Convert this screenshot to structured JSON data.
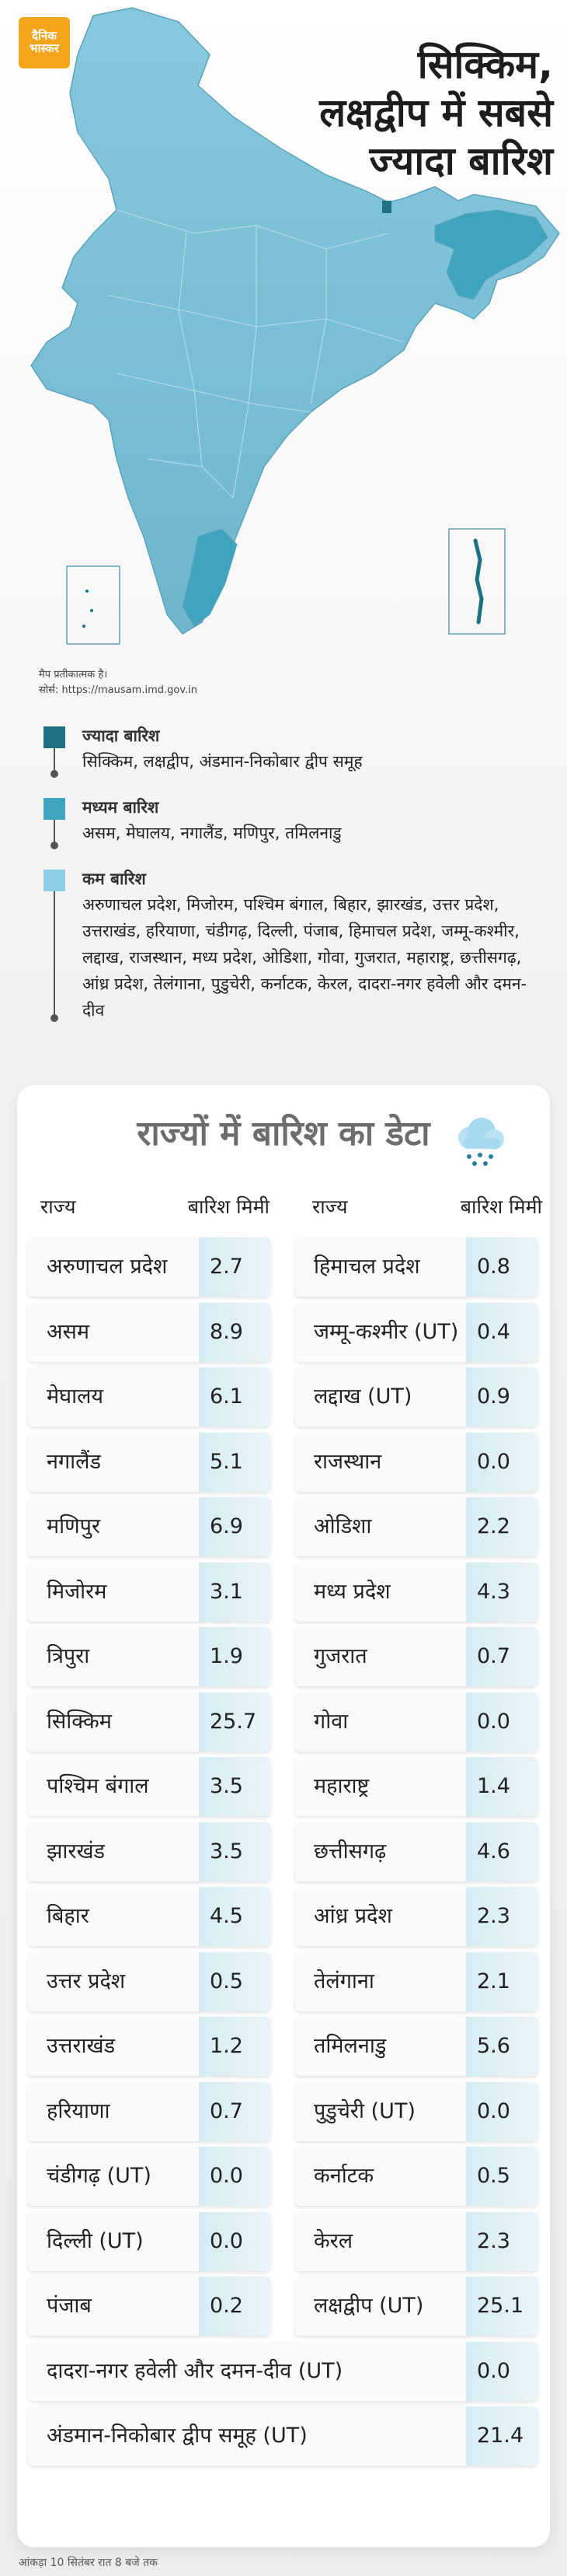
{
  "brand": {
    "line1": "दैनिक",
    "line2": "भास्कर"
  },
  "headline": {
    "line1": "सिक्किम,",
    "line2": "लक्षद्वीप में सबसे",
    "line3": "ज्यादा बारिश"
  },
  "map_note": {
    "line1": "मैप प्रतीकात्मक है।",
    "line2": "सोर्स: https://mausam.imd.gov.in"
  },
  "colors": {
    "high": "#1e7183",
    "medium": "#3fa4bf",
    "low": "#8dd0e6",
    "map_base": "#7cc0d6"
  },
  "legend": [
    {
      "title": "ज्यादा बारिश",
      "states": "सिक्किम, लक्षद्वीप, अंडमान-निकोबार द्वीप समूह"
    },
    {
      "title": "मध्यम बारिश",
      "states": "असम, मेघालय, नगालैंड, मणिपुर, तमिलनाडु"
    },
    {
      "title": "कम बारिश",
      "states": "अरुणाचल प्रदेश, मिजोरम, पश्चिम बंगाल, बिहार, झारखंड, उत्तर प्रदेश, उत्तराखंड, हरियाणा, चंडीगढ़, दिल्ली, पंजाब, हिमाचल प्रदेश, जम्मू-कश्मीर, लद्दाख, राजस्थान, मध्य प्रदेश, ओडिशा, गोवा, गुजरात, महाराष्ट्र, छत्तीसगढ़, आंध्र प्रदेश, तेलंगाना, पुडुचेरी, कर्नाटक, केरल, दादरा-नगर हवेली और दमन-दीव"
    }
  ],
  "table": {
    "title": "राज्यों में बारिश का डेटा",
    "icon": "rain-cloud-icon",
    "col_state": "राज्य",
    "col_value": "बारिश मिमी",
    "left": [
      {
        "name": "अरुणाचल प्रदेश",
        "value": "2.7"
      },
      {
        "name": "असम",
        "value": "8.9"
      },
      {
        "name": "मेघालय",
        "value": "6.1"
      },
      {
        "name": "नगालैंड",
        "value": "5.1"
      },
      {
        "name": "मणिपुर",
        "value": "6.9"
      },
      {
        "name": "मिजोरम",
        "value": "3.1"
      },
      {
        "name": "त्रिपुरा",
        "value": "1.9"
      },
      {
        "name": "सिक्किम",
        "value": "25.7"
      },
      {
        "name": "पश्चिम बंगाल",
        "value": "3.5"
      },
      {
        "name": "झारखंड",
        "value": "3.5"
      },
      {
        "name": "बिहार",
        "value": "4.5"
      },
      {
        "name": "उत्तर प्रदेश",
        "value": "0.5"
      },
      {
        "name": "उत्तराखंड",
        "value": "1.2"
      },
      {
        "name": "हरियाणा",
        "value": "0.7"
      },
      {
        "name": "चंडीगढ़ (UT)",
        "value": "0.0"
      },
      {
        "name": "दिल्ली (UT)",
        "value": "0.0"
      },
      {
        "name": "पंजाब",
        "value": "0.2"
      }
    ],
    "right": [
      {
        "name": "हिमाचल प्रदेश",
        "value": "0.8"
      },
      {
        "name": "जम्मू-कश्मीर (UT)",
        "value": "0.4"
      },
      {
        "name": "लद्दाख (UT)",
        "value": "0.9"
      },
      {
        "name": "राजस्थान",
        "value": "0.0"
      },
      {
        "name": "ओडिशा",
        "value": "2.2"
      },
      {
        "name": "मध्य प्रदेश",
        "value": "4.3"
      },
      {
        "name": "गुजरात",
        "value": "0.7"
      },
      {
        "name": "गोवा",
        "value": "0.0"
      },
      {
        "name": "महाराष्ट्र",
        "value": "1.4"
      },
      {
        "name": "छत्तीसगढ़",
        "value": "4.6"
      },
      {
        "name": "आंध्र प्रदेश",
        "value": "2.3"
      },
      {
        "name": "तेलंगाना",
        "value": "2.1"
      },
      {
        "name": "तमिलनाडु",
        "value": "5.6"
      },
      {
        "name": "पुडुचेरी (UT)",
        "value": "0.0"
      },
      {
        "name": "कर्नाटक",
        "value": "0.5"
      },
      {
        "name": "केरल",
        "value": "2.3"
      },
      {
        "name": "लक्षद्वीप (UT)",
        "value": "25.1"
      }
    ],
    "full": [
      {
        "name": "दादरा-नगर हवेली और दमन-दीव (UT)",
        "value": "0.0"
      },
      {
        "name": "अंडमान-निकोबार द्वीप समूह (UT)",
        "value": "21.4"
      }
    ]
  },
  "footnote": "आंकड़ा 10 सितंबर रात 8 बजे तक"
}
